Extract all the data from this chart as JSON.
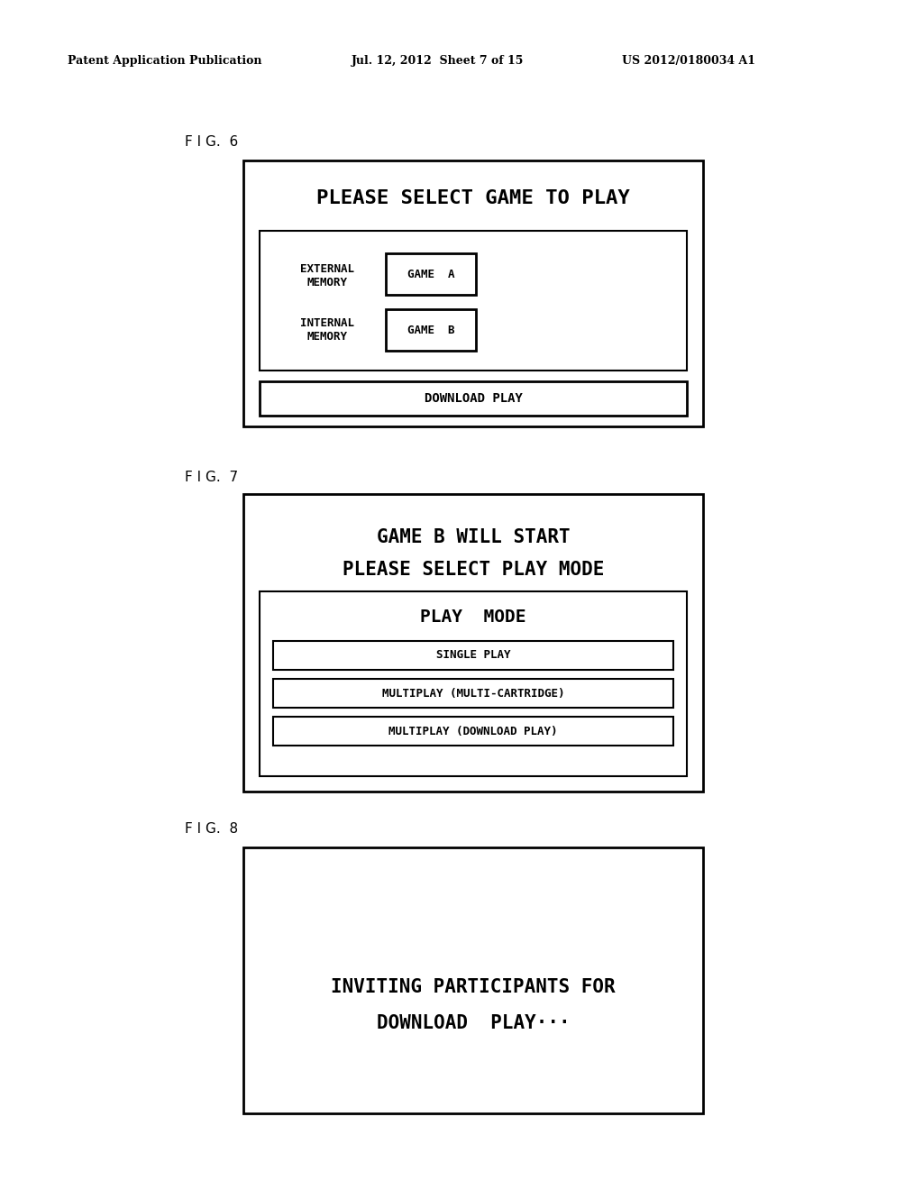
{
  "background_color": "#ffffff",
  "header_left": "Patent Application Publication",
  "header_mid": "Jul. 12, 2012  Sheet 7 of 15",
  "header_right": "US 2012/0180034 A1",
  "fig6_label": "F I G.  6",
  "fig7_label": "F I G.  7",
  "fig8_label": "F I G.  8",
  "fig6_title": "PLEASE SELECT GAME TO PLAY",
  "fig6_external": "EXTERNAL\nMEMORY",
  "fig6_game_a": "GAME  A",
  "fig6_internal": "INTERNAL\nMEMORY",
  "fig6_game_b": "GAME  B",
  "fig6_download": "DOWNLOAD PLAY",
  "fig7_title1": "GAME B WILL START",
  "fig7_title2": "PLEASE SELECT PLAY MODE",
  "fig7_mode_title": "PLAY  MODE",
  "fig7_single": "SINGLE PLAY",
  "fig7_multi1": "MULTIPLAY (MULTI-CARTRIDGE)",
  "fig7_multi2": "MULTIPLAY (DOWNLOAD PLAY)",
  "fig8_text1": "INVITING PARTICIPANTS FOR",
  "fig8_text2": "DOWNLOAD  PLAY···"
}
